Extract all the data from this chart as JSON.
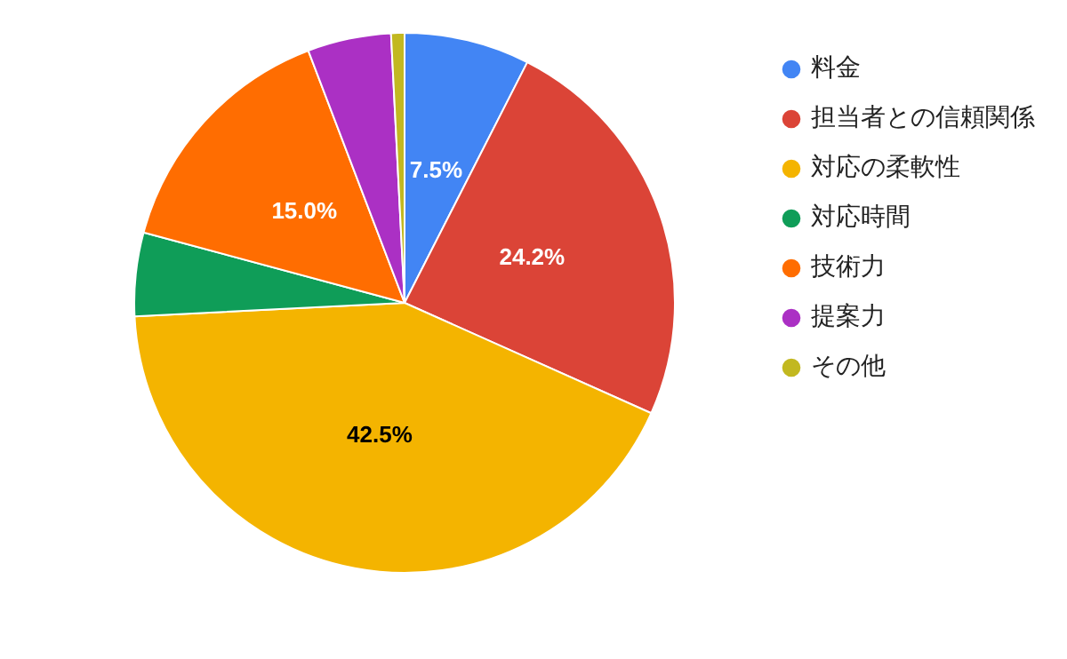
{
  "chart_data": {
    "type": "pie",
    "categories": [
      "料金",
      "担当者との信頼関係",
      "対応の柔軟性",
      "対応時間",
      "技術力",
      "提案力",
      "その他"
    ],
    "values": [
      7.5,
      24.2,
      42.5,
      5.0,
      15.0,
      5.0,
      0.8
    ],
    "colors": [
      "#4285f4",
      "#db4437",
      "#f4b400",
      "#0f9d58",
      "#ff6d01",
      "#ab30c4",
      "#c2b820"
    ],
    "value_labels": [
      "7.5%",
      "24.2%",
      "42.5%",
      null,
      "15.0%",
      null,
      null
    ],
    "legend": "right"
  }
}
